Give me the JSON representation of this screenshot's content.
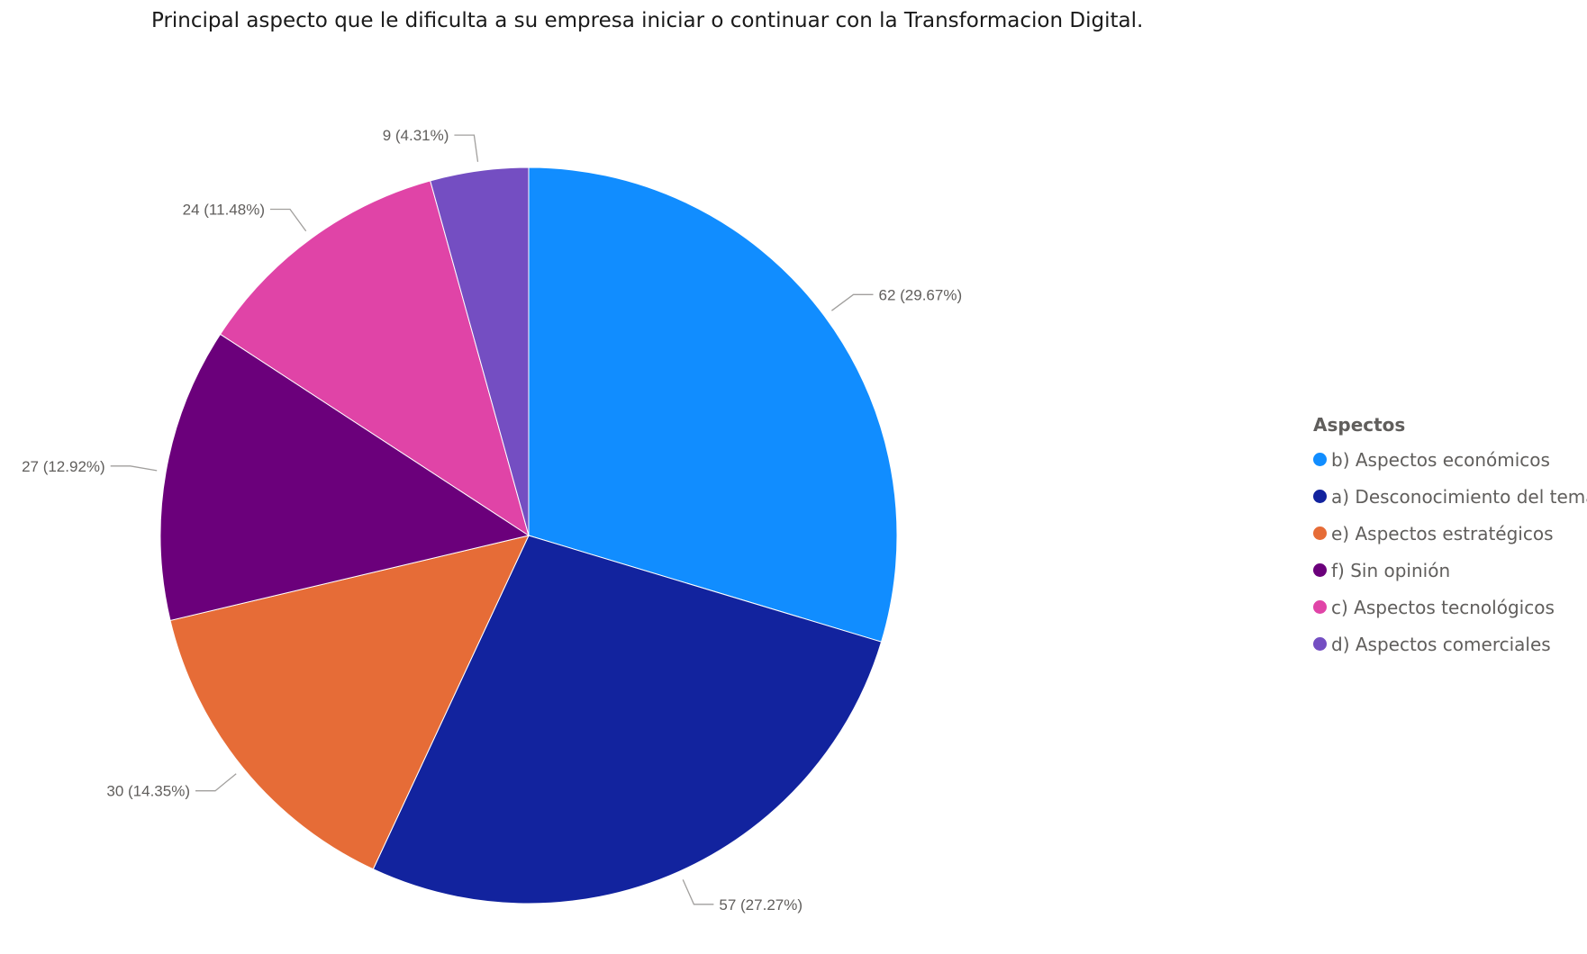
{
  "chart_data": {
    "type": "pie",
    "title": "Principal aspecto que le dificulta a su empresa iniciar o continuar con la Transformacion Digital.",
    "legend_title": "Aspectos",
    "legend_position": "right",
    "slices": [
      {
        "name": "b) Aspectos económicos",
        "value": 62,
        "label": "62 (29.67%)",
        "color": "#118dff"
      },
      {
        "name": "a) Desconocimiento del tema",
        "value": 57,
        "label": "57 (27.27%)",
        "color": "#12239e"
      },
      {
        "name": "e) Aspectos estratégicos",
        "value": 30,
        "label": "30 (14.35%)",
        "color": "#e66c37"
      },
      {
        "name": "f) Sin opinión",
        "value": 27,
        "label": "27 (12.92%)",
        "color": "#6b007b"
      },
      {
        "name": "c) Aspectos tecnológicos",
        "value": 24,
        "label": "24 (11.48%)",
        "color": "#e044a7"
      },
      {
        "name": "d) Aspectos comerciales",
        "value": 9,
        "label": "9 (4.31%)",
        "color": "#744ec2"
      }
    ]
  }
}
